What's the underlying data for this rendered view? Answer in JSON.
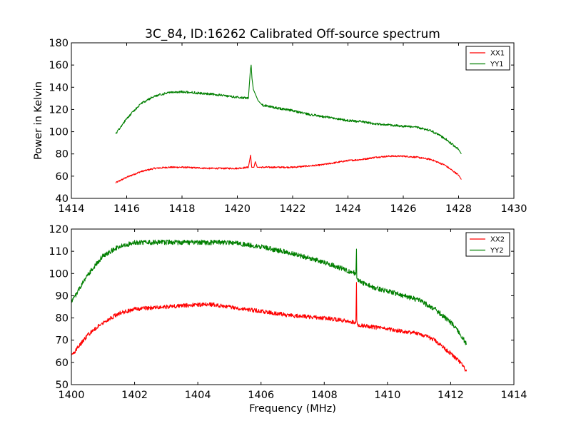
{
  "figure": {
    "title": "3C_84, ID:16262 Calibrated Off-source spectrum"
  },
  "chart_data": [
    {
      "type": "line",
      "title": "3C_84, ID:16262 Calibrated Off-source spectrum",
      "xlabel": "",
      "ylabel": "Power in Kelvin",
      "xlim": [
        1414,
        1430
      ],
      "ylim": [
        40,
        180
      ],
      "xticks": [
        "1414",
        "1416",
        "1418",
        "1420",
        "1422",
        "1424",
        "1426",
        "1428",
        "1430"
      ],
      "yticks": [
        "40",
        "60",
        "80",
        "100",
        "120",
        "140",
        "160",
        "180"
      ],
      "grid": false,
      "legend_position": "top-right",
      "series": [
        {
          "name": "XX1",
          "color": "#ff0000",
          "noise": 0.7,
          "x": [
            1415.6,
            1416.0,
            1416.5,
            1417.0,
            1417.5,
            1418.0,
            1419.0,
            1420.0,
            1420.4,
            1420.48,
            1420.52,
            1420.6,
            1420.65,
            1420.72,
            1420.8,
            1421.5,
            1422.0,
            1422.5,
            1423.0,
            1423.5,
            1424.0,
            1424.5,
            1425.0,
            1425.5,
            1426.0,
            1426.5,
            1427.0,
            1427.5,
            1428.0,
            1428.1
          ],
          "y": [
            54,
            59,
            64,
            67,
            68,
            68,
            67,
            67,
            68,
            79,
            68,
            68,
            73,
            68,
            68,
            68,
            68,
            69,
            70,
            72,
            74,
            75,
            77,
            78,
            78,
            77,
            75,
            70,
            61,
            57
          ]
        },
        {
          "name": "YY1",
          "color": "#007f00",
          "noise": 1.0,
          "x": [
            1415.6,
            1416.0,
            1416.5,
            1417.0,
            1417.5,
            1418.0,
            1419.0,
            1420.0,
            1420.4,
            1420.47,
            1420.5,
            1420.53,
            1420.58,
            1420.65,
            1420.75,
            1420.9,
            1421.5,
            1422.0,
            1422.5,
            1423.0,
            1423.5,
            1424.0,
            1424.5,
            1425.0,
            1425.5,
            1426.0,
            1426.5,
            1427.0,
            1427.5,
            1428.0,
            1428.1
          ],
          "y": [
            98,
            112,
            125,
            132,
            135,
            136,
            134,
            131,
            130,
            155,
            160,
            148,
            138,
            134,
            128,
            124,
            121,
            119,
            116,
            114,
            112,
            110,
            109,
            107,
            106,
            105,
            104,
            101,
            94,
            84,
            80
          ]
        }
      ]
    },
    {
      "type": "line",
      "title": "",
      "xlabel": "Frequency (MHz)",
      "ylabel": "",
      "xlim": [
        1400,
        1414
      ],
      "ylim": [
        50,
        120
      ],
      "xticks": [
        "1400",
        "1402",
        "1404",
        "1406",
        "1408",
        "1410",
        "1412",
        "1414"
      ],
      "yticks": [
        "50",
        "60",
        "70",
        "80",
        "90",
        "100",
        "110",
        "120"
      ],
      "grid": false,
      "legend_position": "top-right",
      "series": [
        {
          "name": "XX2",
          "color": "#ff0000",
          "noise": 0.9,
          "x": [
            1400.0,
            1400.5,
            1401.0,
            1401.5,
            1402.0,
            1403.0,
            1404.0,
            1404.5,
            1405.0,
            1406.0,
            1407.0,
            1408.0,
            1409.0,
            1409.02,
            1409.03,
            1409.05,
            1409.5,
            1410.0,
            1410.5,
            1411.0,
            1411.5,
            1412.0,
            1412.3,
            1412.5
          ],
          "y": [
            63,
            72,
            78,
            82,
            84,
            85,
            86,
            86,
            85,
            83,
            81,
            80,
            78,
            96,
            79,
            77,
            76,
            75,
            74,
            73,
            70,
            64,
            60,
            56
          ]
        },
        {
          "name": "YY2",
          "color": "#007f00",
          "noise": 1.1,
          "x": [
            1400.0,
            1400.5,
            1401.0,
            1401.5,
            1402.0,
            1403.0,
            1404.0,
            1405.0,
            1406.0,
            1407.0,
            1408.0,
            1409.0,
            1409.02,
            1409.03,
            1409.05,
            1409.5,
            1410.0,
            1410.5,
            1411.0,
            1411.5,
            1412.0,
            1412.3,
            1412.5
          ],
          "y": [
            87,
            99,
            108,
            112,
            114,
            114,
            114,
            114,
            112,
            109,
            105,
            100,
            111,
            98,
            97,
            94,
            92,
            90,
            88,
            84,
            78,
            73,
            68
          ]
        }
      ]
    }
  ]
}
